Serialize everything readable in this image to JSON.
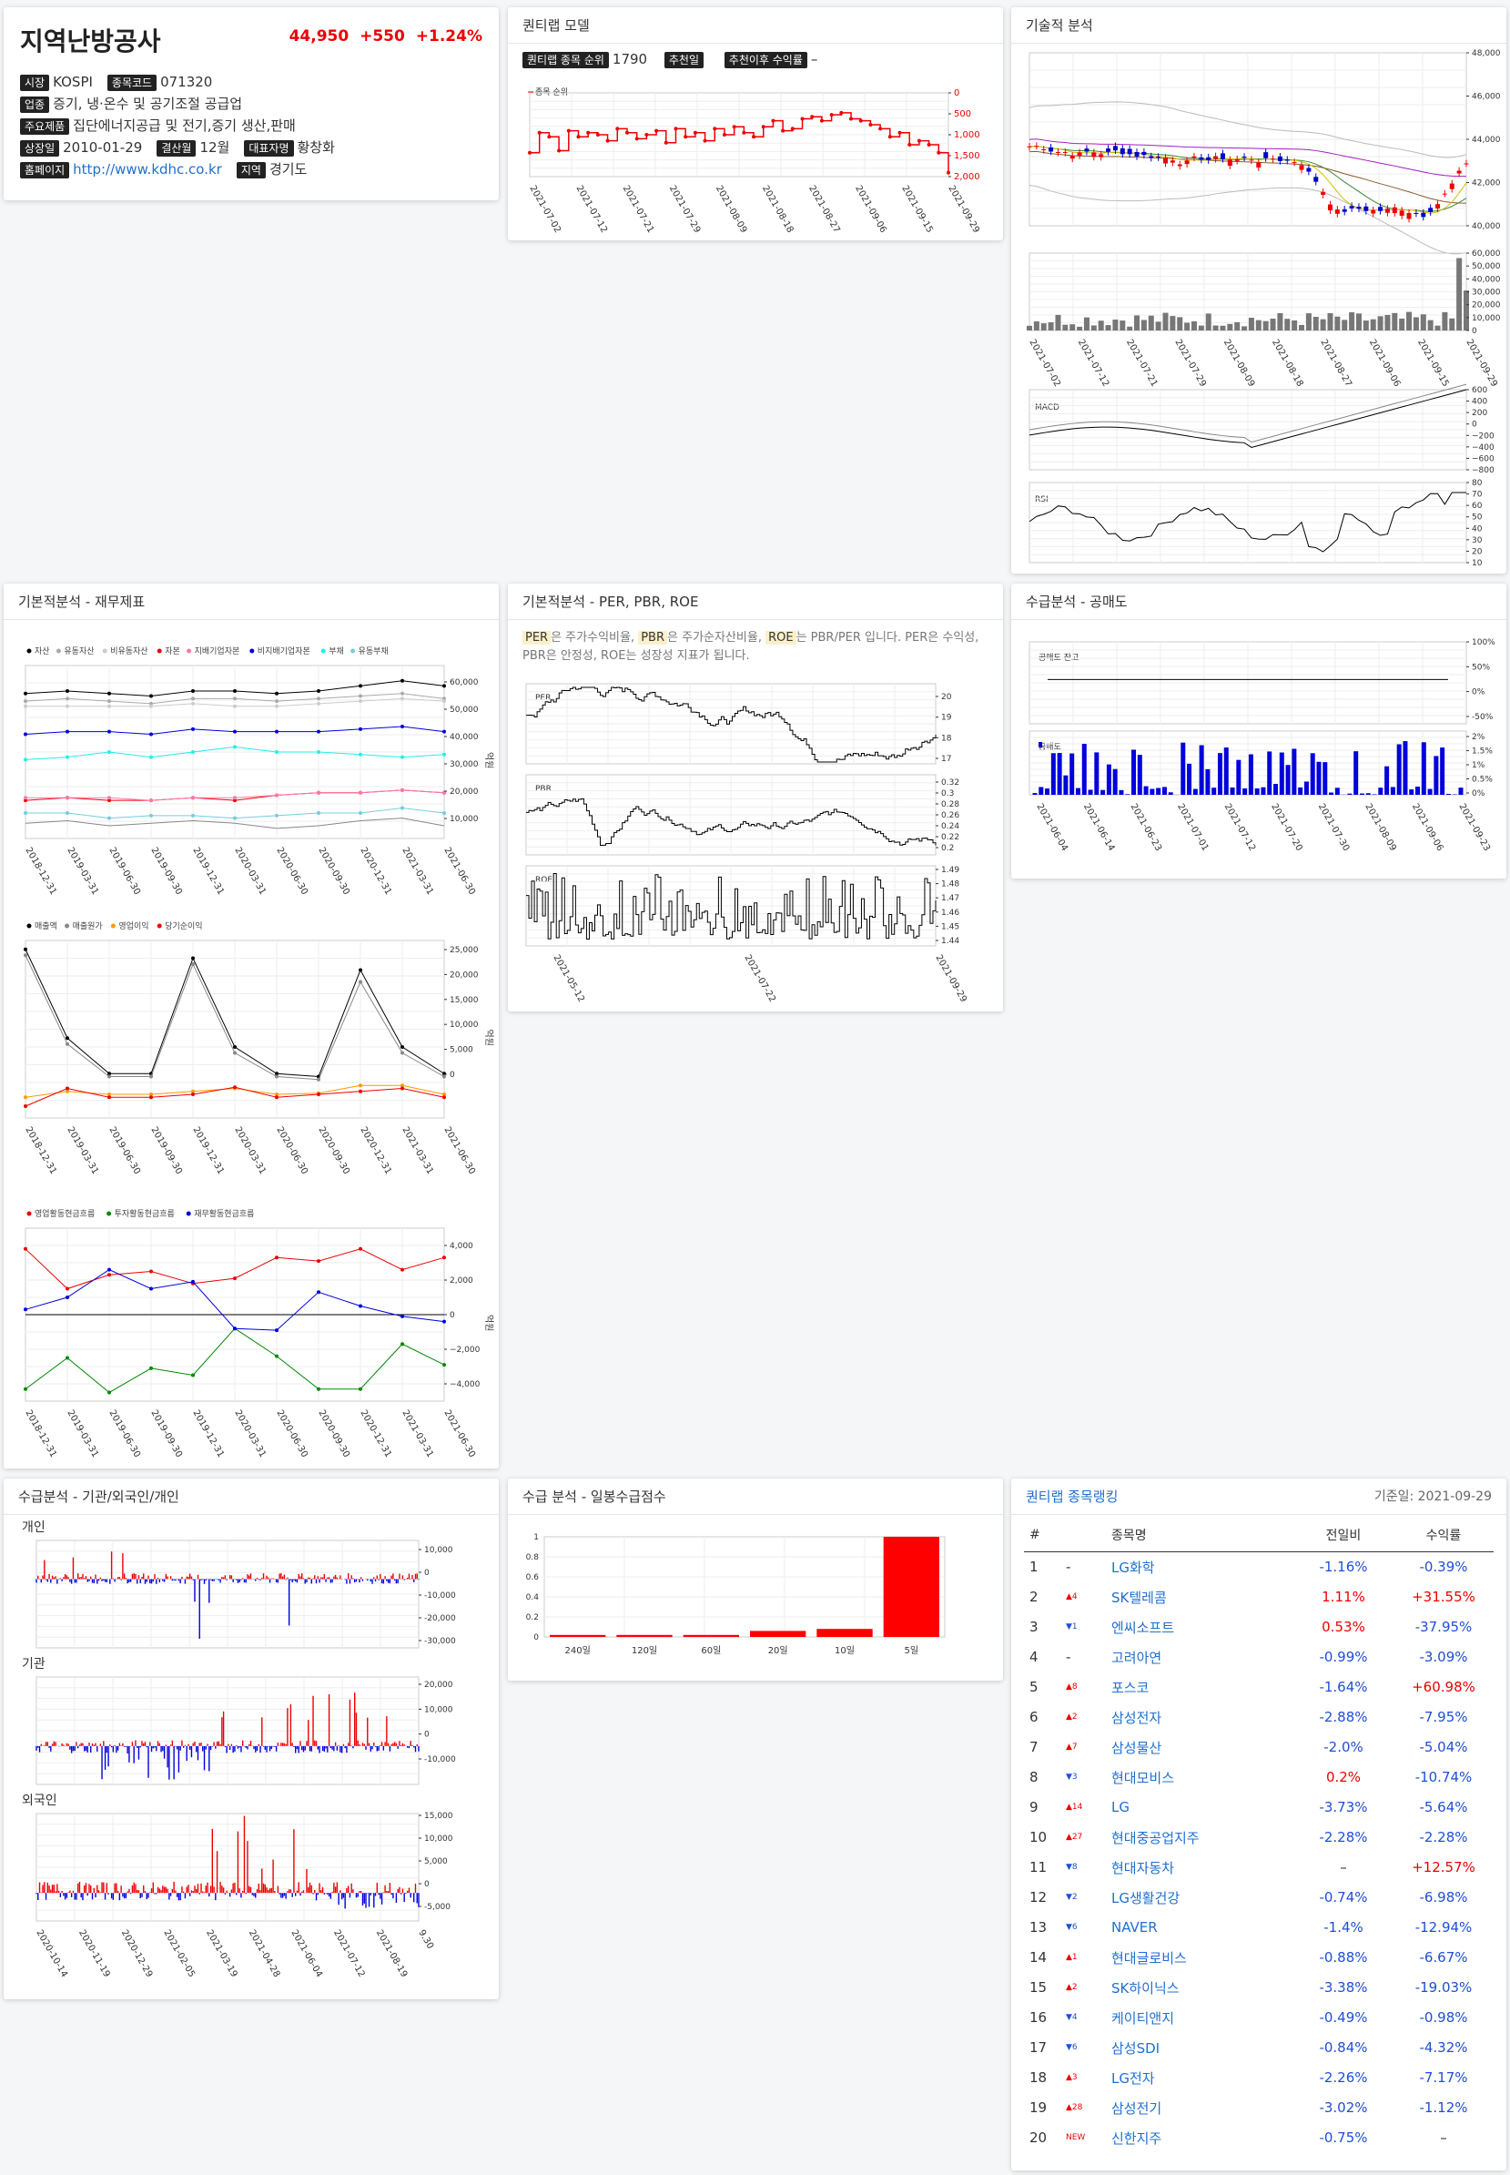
{
  "company": {
    "name": "지역난방공사",
    "price": "44,950",
    "change": "+550",
    "pct": "+1.24%",
    "market_tag": "시장",
    "market": "KOSPI",
    "code_tag": "종목코드",
    "code": "071320",
    "industry_tag": "업종",
    "industry": "증기, 냉·온수 및 공기조절 공급업",
    "product_tag": "주요제품",
    "product": "집단에너지공급 및 전기,증기 생산,판매",
    "listed_tag": "상장일",
    "listed": "2010-01-29",
    "fiscal_tag": "결산월",
    "fiscal": "12월",
    "ceo_tag": "대표자명",
    "ceo": "황창화",
    "home_tag": "홈페이지",
    "home": "http://www.kdhc.co.kr",
    "region_tag": "지역",
    "region": "경기도"
  },
  "quant": {
    "title": "퀀티랩 모델",
    "rank_tag": "퀀티랩 종목 순위",
    "rank": "1790",
    "rec_tag": "추천일",
    "rec_return_tag": "추천이후 수익률",
    "rec_return": "–",
    "legend": "종목 순위",
    "x_ticks": [
      "2021-07-02",
      "2021-07-12",
      "2021-07-21",
      "2021-07-29",
      "2021-08-09",
      "2021-08-18",
      "2021-08-27",
      "2021-09-06",
      "2021-09-15",
      "2021-09-29"
    ],
    "y_ticks": [
      "0",
      "500",
      "1,000",
      "1,500",
      "2,000"
    ]
  },
  "tech": {
    "title": "기술적 분석",
    "price_ticks": [
      "48,000",
      "46,000",
      "44,000",
      "42,000",
      "40,000"
    ],
    "vol_ticks": [
      "60,000",
      "50,000",
      "40,000",
      "30,000",
      "20,000",
      "10,000",
      "0"
    ],
    "x_ticks": [
      "2021-07-02",
      "2021-07-12",
      "2021-07-21",
      "2021-07-29",
      "2021-08-09",
      "2021-08-18",
      "2021-08-27",
      "2021-09-06",
      "2021-09-15",
      "2021-09-29"
    ],
    "macd_label": "MACD",
    "macd_ticks": [
      "600",
      "400",
      "200",
      "0",
      "−200",
      "−400",
      "−600",
      "−800"
    ],
    "rsi_label": "RSI",
    "rsi_ticks": [
      "80",
      "70",
      "60",
      "50",
      "40",
      "30",
      "20",
      "10"
    ]
  },
  "fund": {
    "title": "기본적분석 - 재무제표",
    "legend1": [
      "자산",
      "유동자산",
      "비유동자산",
      "자본",
      "지배기업자본",
      "비지배기업자본",
      "부채",
      "유동부채"
    ],
    "legend2": [
      "매출액",
      "매출원가",
      "영업이익",
      "당기순이익"
    ],
    "legend3": [
      "영업활동현금흐름",
      "투자활동현금흐름",
      "재무활동현금흐름"
    ],
    "x_ticks": [
      "2018-12-31",
      "2019-03-31",
      "2019-06-30",
      "2019-09-30",
      "2019-12-31",
      "2020-03-31",
      "2020-06-30",
      "2020-09-30",
      "2020-12-31",
      "2021-03-31",
      "2021-06-30"
    ],
    "y1": [
      "60,000",
      "50,000",
      "40,000",
      "30,000",
      "20,000",
      "10,000"
    ],
    "y2": [
      "25,000",
      "20,000",
      "15,000",
      "10,000",
      "5,000",
      "0"
    ],
    "y3": [
      "4,000",
      "2,000",
      "0",
      "−2,000",
      "−4,000"
    ],
    "unit": "억원"
  },
  "per": {
    "title": "기본적분석 - PER, PBR, ROE",
    "desc_terms": [
      "PER",
      "PBR",
      "ROE"
    ],
    "desc_parts": [
      "은 주가수익비율, ",
      "은 주가순자산비율, ",
      "는 PBR/PER 입니다. PER은 수익성, PBR은 안정성, ROE는 성장성 지표가 됩니다."
    ],
    "per_label": "PER",
    "per_ticks": [
      "20",
      "19",
      "18",
      "17"
    ],
    "pbr_label": "PBR",
    "pbr_ticks": [
      "0.32",
      "0.3",
      "0.28",
      "0.26",
      "0.24",
      "0.22",
      "0.2"
    ],
    "roe_label": "ROE",
    "roe_ticks": [
      "1.49",
      "1.48",
      "1.47",
      "1.46",
      "1.45",
      "1.44"
    ],
    "x_ticks": [
      "2021-05-12",
      "2021-07-22",
      "2021-09-29"
    ]
  },
  "short": {
    "title": "수급분석 - 공매도",
    "bal_label": "공매도 잔고",
    "bal_ticks": [
      "100%",
      "50%",
      "0%",
      "-50%"
    ],
    "vol_label": "공매도",
    "vol_ticks": [
      "2%",
      "1.5%",
      "1%",
      "0.5%",
      "0%"
    ],
    "x_ticks": [
      "2021-06-04",
      "2021-06-14",
      "2021-06-23",
      "2021-07-01",
      "2021-07-12",
      "2021-07-20",
      "2021-07-30",
      "2021-08-09",
      "2021-09-06",
      "2021-09-23"
    ]
  },
  "flow": {
    "title": "수급분석 - 기관/외국인/개인",
    "p_label": "개인",
    "p_ticks": [
      "10,000",
      "0",
      "-10,000",
      "-20,000",
      "-30,000"
    ],
    "i_label": "기관",
    "i_ticks": [
      "20,000",
      "10,000",
      "0",
      "-10,000"
    ],
    "f_label": "외국인",
    "f_ticks": [
      "15,000",
      "10,000",
      "5,000",
      "0",
      "-5,000"
    ],
    "x_ticks": [
      "2020-10-14",
      "2020-11-19",
      "2020-12-29",
      "2021-02-05",
      "2021-03-19",
      "2021-04-28",
      "2021-06-04",
      "2021-07-12",
      "2021-08-19",
      "9.30"
    ]
  },
  "score": {
    "title": "수급 분석 - 일봉수급점수",
    "y_ticks": [
      "1",
      "0.8",
      "0.6",
      "0.4",
      "0.2",
      "0"
    ]
  },
  "ranking": {
    "title": "퀀티랩 종목랭킹",
    "date": "기준일: 2021-09-29",
    "headers": [
      "#",
      "종목명",
      "전일비",
      "수익률"
    ],
    "rows": [
      {
        "n": "1",
        "mv": "-",
        "d": "",
        "name": "LG화학",
        "chg": "-1.16%",
        "ret": "-0.39%"
      },
      {
        "n": "2",
        "mv": "▲4",
        "d": "up",
        "name": "SK텔레콤",
        "chg": "1.11%",
        "ret": "+31.55%"
      },
      {
        "n": "3",
        "mv": "▼1",
        "d": "dn",
        "name": "엔씨소프트",
        "chg": "0.53%",
        "ret": "-37.95%"
      },
      {
        "n": "4",
        "mv": "-",
        "d": "",
        "name": "고려아연",
        "chg": "-0.99%",
        "ret": "-3.09%"
      },
      {
        "n": "5",
        "mv": "▲8",
        "d": "up",
        "name": "포스코",
        "chg": "-1.64%",
        "ret": "+60.98%"
      },
      {
        "n": "6",
        "mv": "▲2",
        "d": "up",
        "name": "삼성전자",
        "chg": "-2.88%",
        "ret": "-7.95%"
      },
      {
        "n": "7",
        "mv": "▲7",
        "d": "up",
        "name": "삼성물산",
        "chg": "-2.0%",
        "ret": "-5.04%"
      },
      {
        "n": "8",
        "mv": "▼3",
        "d": "dn",
        "name": "현대모비스",
        "chg": "0.2%",
        "ret": "-10.74%"
      },
      {
        "n": "9",
        "mv": "▲14",
        "d": "up",
        "name": "LG",
        "chg": "-3.73%",
        "ret": "-5.64%"
      },
      {
        "n": "10",
        "mv": "▲27",
        "d": "up",
        "name": "현대중공업지주",
        "chg": "-2.28%",
        "ret": "-2.28%"
      },
      {
        "n": "11",
        "mv": "▼8",
        "d": "dn",
        "name": "현대자동차",
        "chg": "–",
        "ret": "+12.57%"
      },
      {
        "n": "12",
        "mv": "▼2",
        "d": "dn",
        "name": "LG생활건강",
        "chg": "-0.74%",
        "ret": "-6.98%"
      },
      {
        "n": "13",
        "mv": "▼6",
        "d": "dn",
        "name": "NAVER",
        "chg": "-1.4%",
        "ret": "-12.94%"
      },
      {
        "n": "14",
        "mv": "▲1",
        "d": "up",
        "name": "현대글로비스",
        "chg": "-0.88%",
        "ret": "-6.67%"
      },
      {
        "n": "15",
        "mv": "▲2",
        "d": "up",
        "name": "SK하이닉스",
        "chg": "-3.38%",
        "ret": "-19.03%"
      },
      {
        "n": "16",
        "mv": "▼4",
        "d": "dn",
        "name": "케이티앤지",
        "chg": "-0.49%",
        "ret": "-0.98%"
      },
      {
        "n": "17",
        "mv": "▼6",
        "d": "dn",
        "name": "삼성SDI",
        "chg": "-0.84%",
        "ret": "-4.32%"
      },
      {
        "n": "18",
        "mv": "▲3",
        "d": "up",
        "name": "LG전자",
        "chg": "-2.26%",
        "ret": "-7.17%"
      },
      {
        "n": "19",
        "mv": "▲28",
        "d": "up",
        "name": "삼성전기",
        "chg": "-3.02%",
        "ret": "-1.12%"
      },
      {
        "n": "20",
        "mv": "NEW",
        "d": "up",
        "name": "신한지주",
        "chg": "-0.75%",
        "ret": "–"
      }
    ]
  }
}
